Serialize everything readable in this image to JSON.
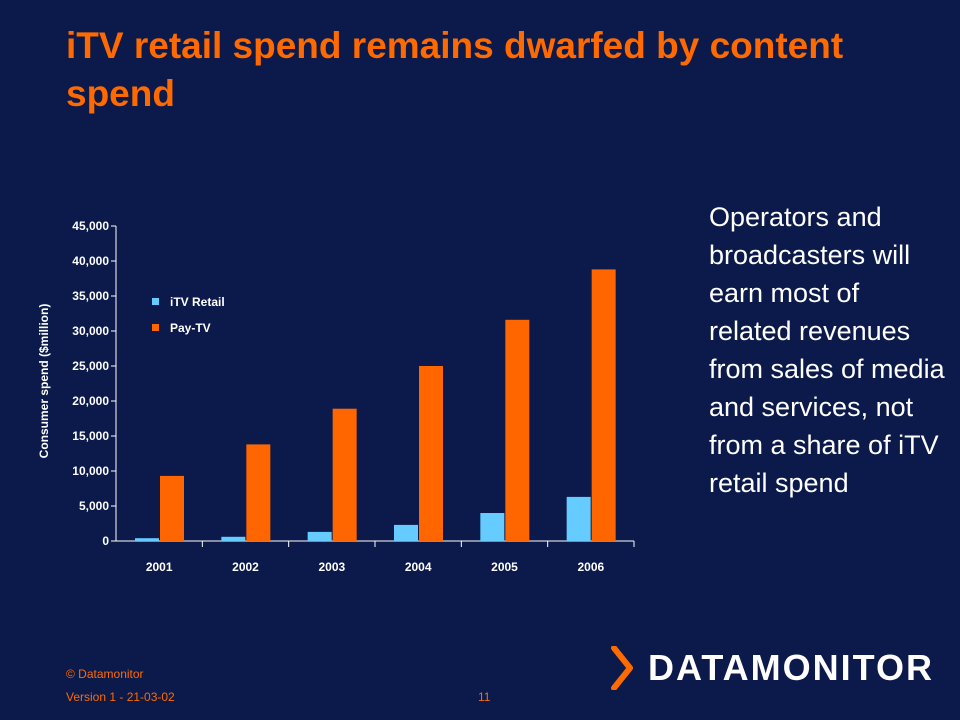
{
  "slide": {
    "title": "iTV retail spend remains dwarfed by content spend",
    "side_text": "Operators and broadcasters will earn most of related revenues from sales of media and services, not from a share of iTV retail spend",
    "footer_copyright": "© Datamonitor",
    "footer_version": "Version 1 - 21-03-02",
    "page_number": "11",
    "logo_text": "DATAMONITOR"
  },
  "colors": {
    "background": "#0b1a4a",
    "accent": "#ff6a00",
    "itv_retail": "#66ccff",
    "pay_tv": "#ff6600"
  },
  "chart_data": {
    "type": "bar",
    "categories": [
      "2001",
      "2002",
      "2003",
      "2004",
      "2005",
      "2006"
    ],
    "series": [
      {
        "name": "iTV Retail",
        "values": [
          400,
          600,
          1300,
          2300,
          4000,
          6300
        ]
      },
      {
        "name": "Pay-TV",
        "values": [
          9300,
          13800,
          18900,
          25000,
          31600,
          38800
        ]
      }
    ],
    "ylabel": "Consumer spend ($million)",
    "xlabel": "",
    "ylim": [
      0,
      45000
    ],
    "yticks": [
      "0",
      "5,000",
      "10,000",
      "15,000",
      "20,000",
      "25,000",
      "30,000",
      "35,000",
      "40,000",
      "45,000"
    ],
    "legend_position": "top-left",
    "grid": false
  }
}
